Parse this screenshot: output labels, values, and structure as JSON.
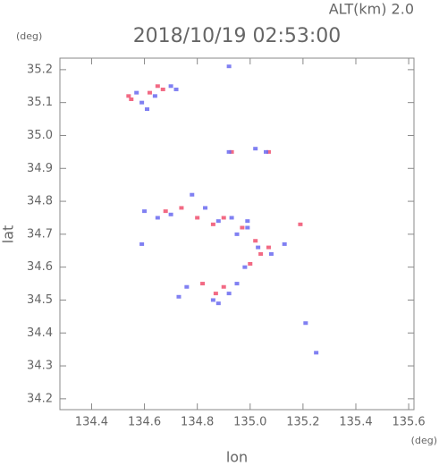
{
  "chart_data": {
    "type": "scatter",
    "title": "2018/10/19 02:53:00",
    "subtitle": "ALT(km) 2.0",
    "x_label": "lon",
    "x_unit": "(deg)",
    "y_label": "lat",
    "y_unit": "(deg)",
    "xlim": [
      134.28,
      135.62
    ],
    "ylim": [
      34.167,
      35.235
    ],
    "xticks": [
      134.4,
      134.6,
      134.8,
      {
        "value": 135,
        "label": "135.0"
      },
      135.2,
      135.4,
      135.6
    ],
    "yticks": [
      34.2,
      34.3,
      34.4,
      34.5,
      34.6,
      34.7,
      34.8,
      34.9,
      {
        "value": 35,
        "label": "35.0"
      },
      35.1,
      35.2
    ],
    "series": [
      {
        "color": "#f0506e",
        "x": [
          134.54,
          134.55,
          134.62,
          134.65,
          134.67,
          134.93,
          135.07,
          134.68,
          134.74,
          134.86,
          134.9,
          134.97,
          135.04,
          135.07,
          135.0,
          135.19,
          134.82,
          134.87,
          134.9,
          134.8,
          135.02
        ],
        "values": [
          35.12,
          35.11,
          35.13,
          35.15,
          35.14,
          34.95,
          34.95,
          34.77,
          34.78,
          34.73,
          34.75,
          34.72,
          34.64,
          34.66,
          34.61,
          34.73,
          34.55,
          34.52,
          34.54,
          34.75,
          34.68
        ]
      },
      {
        "color": "#6a6af0",
        "x": [
          134.57,
          134.59,
          134.61,
          134.64,
          134.7,
          134.72,
          134.92,
          135.02,
          135.06,
          134.6,
          134.65,
          134.7,
          134.78,
          134.83,
          134.88,
          134.93,
          134.99,
          134.95,
          135.03,
          134.98,
          135.08,
          134.59,
          134.73,
          134.76,
          134.86,
          134.88,
          134.92,
          134.95,
          134.92,
          135.13,
          135.21,
          135.25,
          134.99
        ],
        "values": [
          35.13,
          35.1,
          35.08,
          35.12,
          35.15,
          35.14,
          34.95,
          34.96,
          34.95,
          34.77,
          34.75,
          34.76,
          34.82,
          34.78,
          34.74,
          34.75,
          34.74,
          34.7,
          34.66,
          34.6,
          34.64,
          34.67,
          34.51,
          34.54,
          34.5,
          34.49,
          34.52,
          34.55,
          35.21,
          34.67,
          34.43,
          34.34,
          34.72
        ]
      }
    ]
  }
}
